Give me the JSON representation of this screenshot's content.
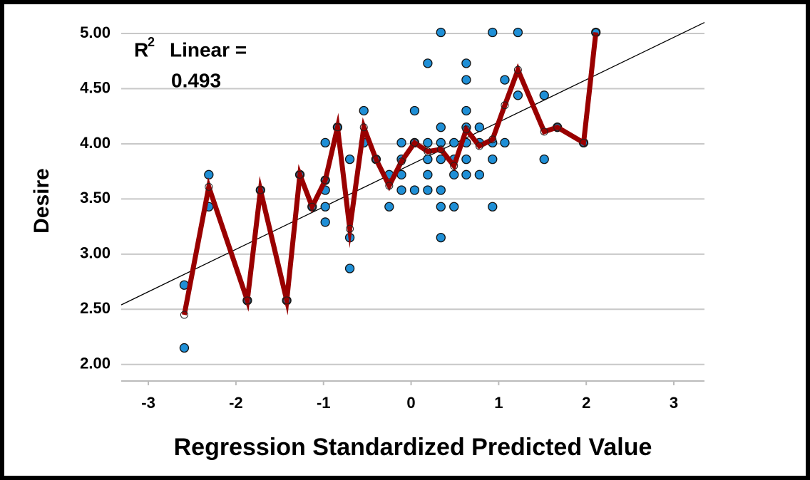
{
  "chart_data": {
    "type": "scatter",
    "ylabel": "Desire",
    "xlabel": "Regression Standardized Predicted Value",
    "annotation": {
      "r": "R",
      "sup": "2",
      "text": "Linear =",
      "value": "0.493"
    },
    "xlim": [
      -3.31,
      3.35
    ],
    "ylim": [
      1.85,
      5.11
    ],
    "xticks": [
      -3,
      -2,
      -1,
      0,
      1,
      2,
      3
    ],
    "yticks": [
      {
        "value": 2,
        "label": "2.00"
      },
      {
        "value": 2.5,
        "label": "2.50"
      },
      {
        "value": 3,
        "label": "3.00"
      },
      {
        "value": 3.5,
        "label": "3.50"
      },
      {
        "value": 4,
        "label": "4.00"
      },
      {
        "value": 4.5,
        "label": "4.50"
      },
      {
        "value": 5,
        "label": "5.00"
      }
    ],
    "grid": true,
    "fit_line": {
      "color": "#000000",
      "x": [
        -3.31,
        3.35
      ],
      "values": [
        2.54,
        5.1
      ]
    },
    "series": [
      {
        "color": "#1f8fd6",
        "x": [
          -2.59,
          -2.59,
          -2.31,
          -2.31,
          -1.87,
          -1.72,
          -1.42,
          -1.27,
          -1.13,
          -0.98,
          -0.98,
          -0.98,
          -0.98,
          -0.98,
          -0.84,
          -0.7,
          -0.7,
          -0.7,
          -0.54,
          -0.54,
          -0.4,
          -0.25,
          -0.25,
          -0.11,
          -0.11,
          -0.11,
          -0.11,
          0.04,
          0.04,
          0.04,
          0.19,
          0.19,
          0.19,
          0.19,
          0.19,
          0.34,
          0.34,
          0.34,
          0.34,
          0.34,
          0.34,
          0.34,
          0.49,
          0.49,
          0.49,
          0.49,
          0.63,
          0.63,
          0.63,
          0.63,
          0.63,
          0.63,
          0.63,
          0.78,
          0.78,
          0.78,
          0.93,
          0.93,
          0.93,
          0.93,
          1.07,
          1.07,
          1.22,
          1.22,
          1.52,
          1.52,
          1.67,
          1.97,
          2.11
        ],
        "values": [
          2.72,
          2.15,
          3.72,
          3.43,
          2.58,
          3.58,
          2.58,
          3.72,
          3.43,
          4.01,
          3.58,
          3.43,
          3.29,
          3.67,
          4.15,
          3.86,
          3.15,
          2.87,
          4.3,
          4.01,
          3.86,
          3.43,
          3.72,
          4.01,
          3.86,
          3.72,
          3.58,
          4.3,
          4.01,
          3.58,
          4.73,
          4.01,
          3.86,
          3.72,
          3.58,
          5.01,
          4.15,
          4.01,
          3.86,
          3.58,
          3.43,
          3.15,
          4.01,
          3.86,
          3.72,
          3.43,
          4.73,
          4.58,
          4.3,
          4.15,
          4.01,
          3.86,
          3.72,
          4.15,
          4.01,
          3.72,
          5.01,
          4.01,
          3.86,
          3.43,
          4.58,
          4.01,
          5.01,
          4.44,
          4.44,
          3.86,
          4.15,
          4.01,
          5.01
        ]
      },
      {
        "color": "#990000",
        "style": "line",
        "x": [
          -2.59,
          -2.31,
          -1.87,
          -1.72,
          -1.42,
          -1.27,
          -1.13,
          -0.98,
          -0.84,
          -0.7,
          -0.54,
          -0.4,
          -0.25,
          -0.11,
          0.04,
          0.19,
          0.34,
          0.49,
          0.63,
          0.78,
          0.93,
          1.07,
          1.22,
          1.52,
          1.67,
          1.97,
          2.11
        ],
        "values": [
          2.45,
          3.61,
          2.58,
          3.58,
          2.58,
          3.72,
          3.43,
          3.67,
          4.15,
          3.23,
          4.15,
          3.86,
          3.62,
          3.84,
          4.01,
          3.93,
          3.95,
          3.8,
          4.13,
          3.98,
          4.04,
          4.35,
          4.67,
          4.11,
          4.15,
          4.01,
          5.01
        ]
      }
    ]
  }
}
